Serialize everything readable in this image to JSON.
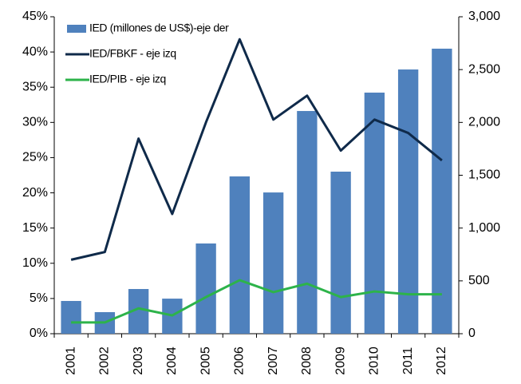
{
  "chart_data": {
    "type": "combo",
    "categories": [
      "2001",
      "2002",
      "2003",
      "2004",
      "2005",
      "2006",
      "2007",
      "2008",
      "2009",
      "2010",
      "2011",
      "2012"
    ],
    "series": [
      {
        "name": "IED (millones de US$)-eje der",
        "type": "bar",
        "axis": "y2",
        "color": "#4f81bd",
        "values": [
          310,
          204,
          423,
          332,
          854,
          1489,
          1337,
          2108,
          1534,
          2282,
          2501,
          2698
        ]
      },
      {
        "name": "IED/FBKF - eje izq",
        "type": "line",
        "color": "#0f2a4a",
        "values": [
          10.5,
          11.6,
          27.7,
          17.0,
          30.0,
          41.8,
          30.4,
          33.8,
          26.0,
          30.4,
          28.5,
          24.6
        ]
      },
      {
        "name": "IED/PIB - eje izq",
        "type": "line",
        "color": "#2db34a",
        "values": [
          1.6,
          1.6,
          3.6,
          2.6,
          5.2,
          7.6,
          5.9,
          7.1,
          5.2,
          6.0,
          5.6,
          5.6
        ]
      }
    ],
    "ylim": [
      0,
      45
    ],
    "yticks": [
      {
        "value": 0,
        "label": "0%"
      },
      {
        "value": 5,
        "label": "5%"
      },
      {
        "value": 10,
        "label": "10%"
      },
      {
        "value": 15,
        "label": "15%"
      },
      {
        "value": 20,
        "label": "20%"
      },
      {
        "value": 25,
        "label": "25%"
      },
      {
        "value": 30,
        "label": "30%"
      },
      {
        "value": 35,
        "label": "35%"
      },
      {
        "value": 40,
        "label": "40%"
      },
      {
        "value": 45,
        "label": "45%"
      }
    ],
    "y2lim": [
      0,
      3000
    ],
    "y2ticks": [
      0,
      500,
      {
        "value": 1000,
        "label": "1,000"
      },
      {
        "value": 1500,
        "label": "1,500"
      },
      {
        "value": 2000,
        "label": "2,000"
      },
      {
        "value": 2500,
        "label": "2,500"
      },
      {
        "value": 3000,
        "label": "3,000"
      }
    ],
    "legend": "top-left",
    "grid": false
  }
}
